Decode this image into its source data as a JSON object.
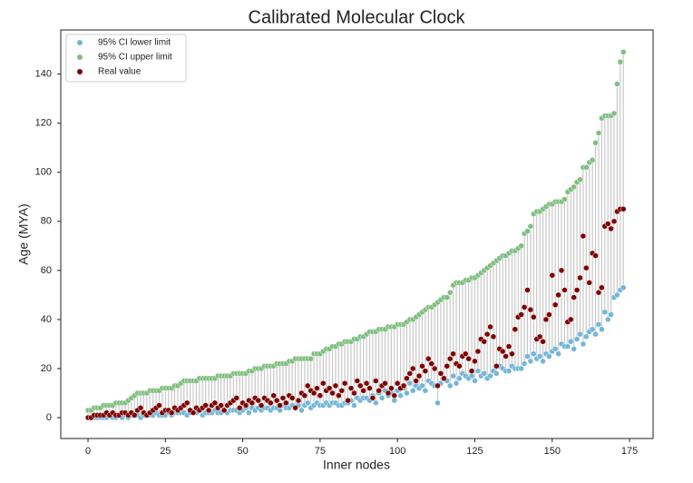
{
  "chart_data": {
    "type": "scatter",
    "title": "Calibrated Molecular Clock",
    "x_label": "Inner nodes",
    "y_label": "Age (MYA)",
    "x": [
      0,
      1,
      2,
      3,
      4,
      5,
      6,
      7,
      8,
      9,
      10,
      11,
      12,
      13,
      14,
      15,
      16,
      17,
      18,
      19,
      20,
      21,
      22,
      23,
      24,
      25,
      26,
      27,
      28,
      29,
      30,
      31,
      32,
      33,
      34,
      35,
      36,
      37,
      38,
      39,
      40,
      41,
      42,
      43,
      44,
      45,
      46,
      47,
      48,
      49,
      50,
      51,
      52,
      53,
      54,
      55,
      56,
      57,
      58,
      59,
      60,
      61,
      62,
      63,
      64,
      65,
      66,
      67,
      68,
      69,
      70,
      71,
      72,
      73,
      74,
      75,
      76,
      77,
      78,
      79,
      80,
      81,
      82,
      83,
      84,
      85,
      86,
      87,
      88,
      89,
      90,
      91,
      92,
      93,
      94,
      95,
      96,
      97,
      98,
      99,
      100,
      101,
      102,
      103,
      104,
      105,
      106,
      107,
      108,
      109,
      110,
      111,
      112,
      113,
      114,
      115,
      116,
      117,
      118,
      119,
      120,
      121,
      122,
      123,
      124,
      125,
      126,
      127,
      128,
      129,
      130,
      131,
      132,
      133,
      134,
      135,
      136,
      137,
      138,
      139,
      140,
      141,
      142,
      143,
      144,
      145,
      146,
      147,
      148,
      149,
      150,
      151,
      152,
      153,
      154,
      155,
      156,
      157,
      158,
      159,
      160,
      161,
      162,
      163,
      164,
      165,
      166,
      167,
      168,
      169,
      170,
      171,
      172,
      173
    ],
    "series": [
      {
        "name": "95% CI lower limit",
        "color": "#74b6d8",
        "values": [
          0,
          0,
          0,
          0,
          0,
          0,
          0,
          1,
          0,
          0,
          1,
          0,
          1,
          0,
          1,
          1,
          1,
          0,
          1,
          1,
          1,
          1,
          2,
          1,
          1,
          1,
          2,
          1,
          2,
          2,
          2,
          2,
          1,
          2,
          2,
          2,
          3,
          1,
          2,
          2,
          2,
          3,
          2,
          2,
          3,
          2,
          3,
          3,
          3,
          2,
          3,
          4,
          2,
          4,
          3,
          4,
          3,
          4,
          4,
          3,
          4,
          4,
          3,
          5,
          4,
          4,
          5,
          4,
          5,
          3,
          5,
          6,
          4,
          5,
          6,
          5,
          5,
          6,
          5,
          6,
          6,
          5,
          5,
          6,
          6,
          7,
          5,
          8,
          7,
          8,
          8,
          7,
          9,
          6,
          10,
          8,
          11,
          9,
          10,
          7,
          11,
          9,
          12,
          10,
          14,
          11,
          13,
          12,
          13,
          11,
          15,
          14,
          13,
          6,
          14,
          16,
          15,
          13,
          17,
          14,
          16,
          18,
          17,
          16,
          17,
          15,
          19,
          17,
          18,
          16,
          17,
          19,
          18,
          21,
          20,
          19,
          19,
          21,
          20,
          20,
          20,
          22,
          25,
          23,
          26,
          24,
          25,
          23,
          26,
          25,
          27,
          28,
          26,
          30,
          29,
          29,
          31,
          28,
          32,
          34,
          30,
          33,
          35,
          36,
          34,
          38,
          36,
          43,
          40,
          42,
          49,
          50,
          52,
          53
        ]
      },
      {
        "name": "95% CI upper limit",
        "color": "#7fbf7f",
        "values": [
          3,
          3,
          4,
          4,
          4,
          5,
          5,
          5,
          5,
          6,
          6,
          6,
          6,
          7,
          8,
          9,
          10,
          10,
          10,
          10,
          11,
          11,
          11,
          11,
          12,
          12,
          12,
          12,
          13,
          13,
          14,
          15,
          15,
          15,
          15,
          15,
          16,
          16,
          16,
          16,
          16,
          16,
          17,
          17,
          17,
          17,
          17,
          18,
          18,
          18,
          18,
          18,
          19,
          19,
          20,
          20,
          20,
          21,
          21,
          21,
          21,
          22,
          22,
          22,
          22,
          23,
          23,
          24,
          24,
          24,
          24,
          24,
          24,
          26,
          26,
          26,
          27,
          28,
          28,
          29,
          29,
          30,
          30,
          31,
          31,
          31,
          32,
          32,
          33,
          33,
          34,
          35,
          35,
          35,
          36,
          36,
          36,
          37,
          37,
          37,
          38,
          38,
          38,
          39,
          40,
          40,
          41,
          42,
          43,
          44,
          45,
          45,
          46,
          47,
          48,
          49,
          49,
          51,
          54,
          55,
          55,
          55,
          56,
          56,
          57,
          57,
          58,
          59,
          60,
          61,
          62,
          63,
          64,
          65,
          66,
          66,
          67,
          68,
          68,
          69,
          70,
          75,
          76,
          78,
          83,
          84,
          84,
          85,
          86,
          87,
          87,
          88,
          88,
          88,
          89,
          92,
          93,
          94,
          96,
          97,
          102,
          102,
          104,
          105,
          112,
          116,
          122,
          123,
          123,
          123,
          124,
          136,
          145,
          149
        ]
      },
      {
        "name": "Real value",
        "color": "#7f0000",
        "values": [
          0,
          0,
          1,
          1,
          1,
          1,
          2,
          1,
          2,
          1,
          1,
          2,
          2,
          1,
          2,
          1,
          3,
          4,
          2,
          1,
          2,
          3,
          4,
          5,
          2,
          3,
          3,
          2,
          4,
          3,
          4,
          5,
          6,
          3,
          2,
          4,
          3,
          4,
          5,
          3,
          5,
          6,
          4,
          5,
          3,
          5,
          6,
          7,
          8,
          4,
          6,
          5,
          7,
          6,
          8,
          7,
          5,
          8,
          7,
          6,
          9,
          7,
          5,
          8,
          6,
          9,
          8,
          4,
          7,
          10,
          9,
          13,
          11,
          10,
          12,
          9,
          14,
          11,
          12,
          10,
          13,
          9,
          11,
          14,
          7,
          12,
          10,
          15,
          13,
          11,
          14,
          12,
          8,
          15,
          11,
          13,
          14,
          10,
          12,
          9,
          14,
          12,
          13,
          16,
          18,
          20,
          15,
          17,
          21,
          19,
          24,
          22,
          20,
          13,
          18,
          16,
          21,
          24,
          26,
          22,
          21,
          25,
          26,
          24,
          19,
          23,
          27,
          32,
          31,
          34,
          37,
          33,
          21,
          28,
          27,
          25,
          29,
          26,
          36,
          41,
          42,
          45,
          52,
          44,
          41,
          32,
          33,
          31,
          40,
          42,
          58,
          46,
          50,
          60,
          52,
          39,
          40,
          49,
          52,
          57,
          74,
          61,
          55,
          67,
          66,
          51,
          53,
          78,
          79,
          77,
          80,
          84,
          85,
          85
        ]
      }
    ],
    "range_line_color": "#c8c8c8",
    "xlim": [
      -8.8,
      182.6
    ],
    "ylim": [
      -8.5,
      158
    ],
    "xticks": [
      0,
      25,
      50,
      75,
      100,
      125,
      150,
      175
    ],
    "yticks": [
      0,
      20,
      40,
      60,
      80,
      100,
      120,
      140
    ],
    "legend": "upper left"
  }
}
